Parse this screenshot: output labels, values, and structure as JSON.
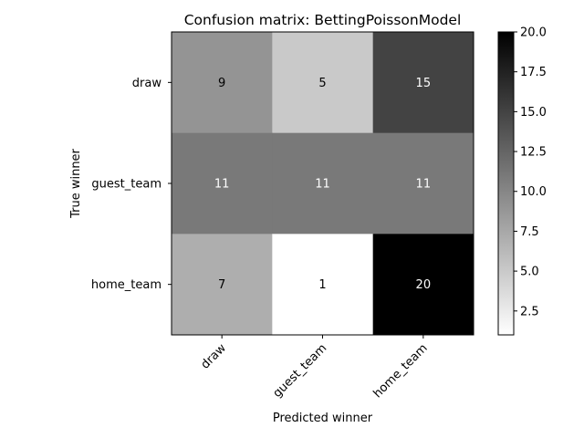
{
  "chart_data": {
    "type": "heatmap",
    "title": "Confusion matrix: BettingPoissonModel",
    "xlabel": "Predicted winner",
    "ylabel": "True winner",
    "x_categories": [
      "draw",
      "guest_team",
      "home_team"
    ],
    "y_categories": [
      "draw",
      "guest_team",
      "home_team"
    ],
    "values": [
      [
        9,
        5,
        15
      ],
      [
        11,
        11,
        11
      ],
      [
        7,
        1,
        20
      ]
    ],
    "colormap": "gray_r",
    "color_range": [
      1,
      20
    ],
    "colorbar_ticks": [
      "2.5",
      "5.0",
      "7.5",
      "10.0",
      "12.5",
      "15.0",
      "17.5",
      "20.0"
    ],
    "grid": false
  }
}
